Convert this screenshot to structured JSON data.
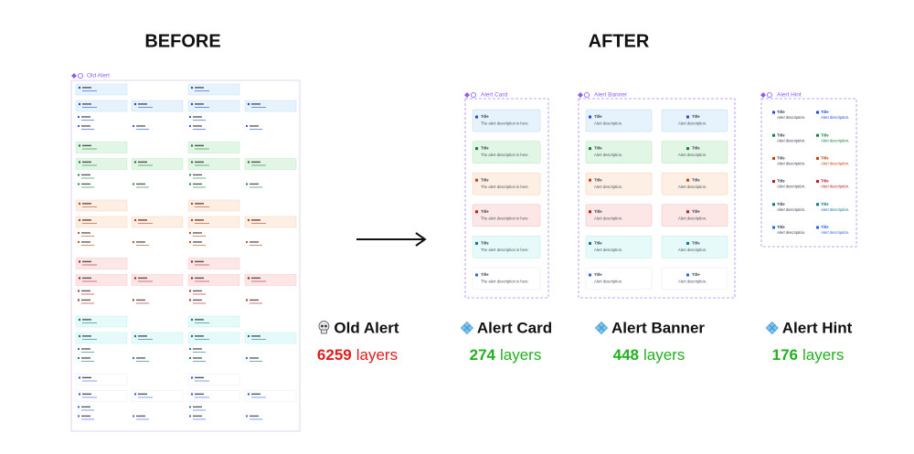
{
  "before_heading": "BEFORE",
  "after_heading": "AFTER",
  "old_frame_label": "Old Alert",
  "item_title": "Title",
  "frames": [
    {
      "label": "Alert Card",
      "description": "The alert description is here"
    },
    {
      "label": "Alert Banner",
      "description": "Alert description."
    },
    {
      "label": "Alert Hint",
      "description": "Alert description."
    }
  ],
  "summary": [
    {
      "name": "Old Alert",
      "layers": 6259
    },
    {
      "name": "Alert Card",
      "layers": 274
    },
    {
      "name": "Alert Banner",
      "layers": 448
    },
    {
      "name": "Alert Hint",
      "layers": 176
    }
  ],
  "layers_word": "layers"
}
